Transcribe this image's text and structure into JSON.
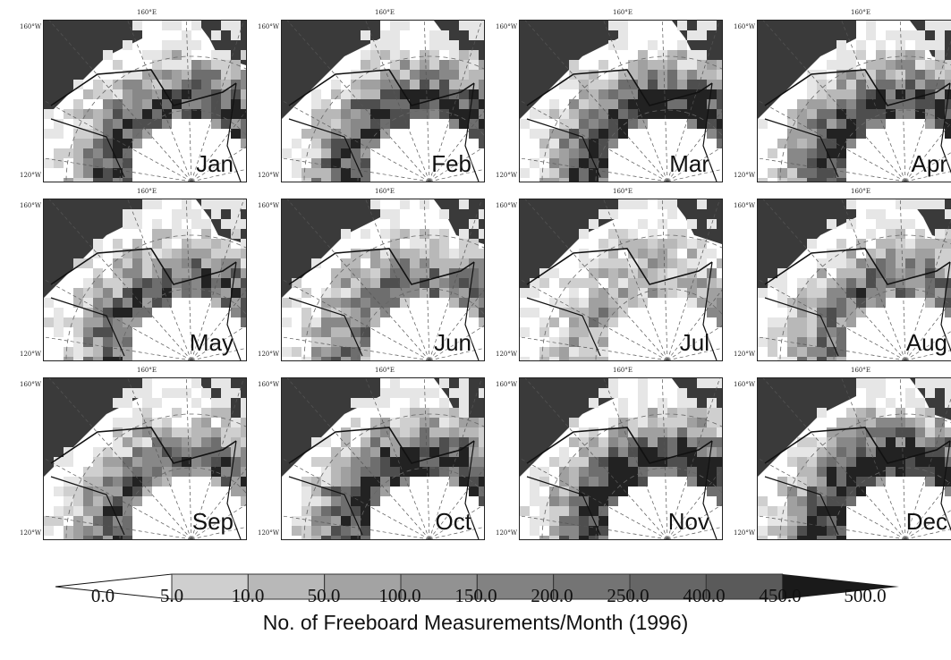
{
  "figure": {
    "longitude_label": "160°E",
    "latitude_top_label": "160°W",
    "latitude_bottom_label": "120°W",
    "months": [
      "Jan",
      "Feb",
      "Mar",
      "Apr",
      "May",
      "Jun",
      "Jul",
      "Aug",
      "Sep",
      "Oct",
      "Nov",
      "Dec"
    ],
    "intensity": [
      0.55,
      0.6,
      0.62,
      0.58,
      0.5,
      0.45,
      0.3,
      0.45,
      0.5,
      0.6,
      0.62,
      0.65
    ]
  },
  "legend": {
    "title": "No. of Freeboard Measurements/Month (1996)",
    "ticks": [
      "0.0",
      "5.0",
      "10.0",
      "50.0",
      "100.0",
      "150.0",
      "200.0",
      "250.0",
      "400.0",
      "450.0",
      "500.0"
    ],
    "colors": [
      "#ffffff",
      "#cfcfcf",
      "#b8b8b8",
      "#a3a3a3",
      "#929292",
      "#828282",
      "#747474",
      "#666666",
      "#5a5a5a",
      "#1a1a1a"
    ]
  }
}
